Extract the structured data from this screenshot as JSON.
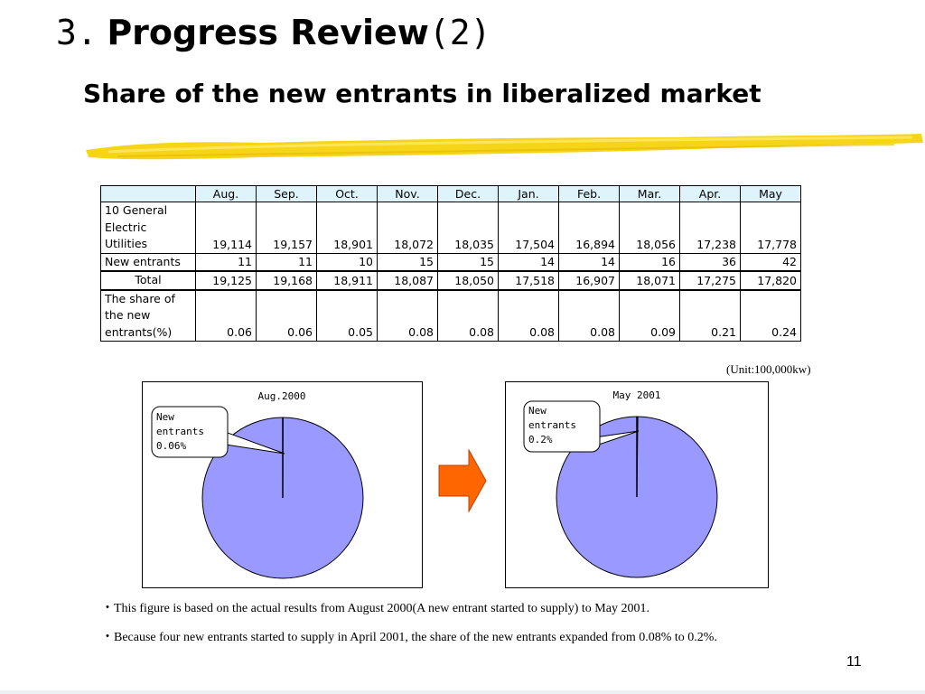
{
  "header": {
    "number": "3.",
    "title": "Progress Review",
    "suffix": "(2)",
    "subtitle": "Share of the new entrants in liberalized market"
  },
  "table": {
    "columns": [
      "Aug.",
      "Sep.",
      "Oct.",
      "Nov.",
      "Dec.",
      "Jan.",
      "Feb.",
      "Mar.",
      "Apr.",
      "May"
    ],
    "rows": [
      {
        "label": "10 General Electric Utilities",
        "values": [
          "19,114",
          "19,157",
          "18,901",
          "18,072",
          "18,035",
          "17,504",
          "16,894",
          "18,056",
          "17,238",
          "17,778"
        ]
      },
      {
        "label": "New entrants",
        "values": [
          "11",
          "11",
          "10",
          "15",
          "15",
          "14",
          "14",
          "16",
          "36",
          "42"
        ]
      },
      {
        "label": "Total",
        "values": [
          "19,125",
          "19,168",
          "18,911",
          "18,087",
          "18,050",
          "17,518",
          "16,907",
          "18,071",
          "17,275",
          "17,820"
        ]
      },
      {
        "label": "The share of the new entrants(%)",
        "values": [
          "0.06",
          "0.06",
          "0.05",
          "0.08",
          "0.08",
          "0.08",
          "0.08",
          "0.09",
          "0.21",
          "0.24"
        ]
      }
    ],
    "unit": "(Unit:100,000kw)"
  },
  "chart_data": [
    {
      "type": "pie",
      "title": "Aug.2000",
      "slices": [
        {
          "label": "New entrants 0.06%",
          "value": 0.06
        },
        {
          "label": "",
          "value": 99.94
        }
      ],
      "callout": [
        "New",
        "entrants",
        "0.06%"
      ],
      "colors": {
        "main": "#9999ff",
        "outline": "#000000"
      }
    },
    {
      "type": "pie",
      "title": "May 2001",
      "slices": [
        {
          "label": "New entrants 0.2%",
          "value": 0.2
        },
        {
          "label": "",
          "value": 99.8
        }
      ],
      "callout": [
        "New",
        "entrants",
        "0.2%"
      ],
      "colors": {
        "main": "#9999ff",
        "outline": "#000000"
      }
    }
  ],
  "arrow": {
    "color": "#ff6600",
    "icon": "right-arrow-icon"
  },
  "notes": [
    "・This figure is based on the actual results from August 2000(A new entrant started to supply) to May 2001.",
    "・Because four new entrants started to supply in April 2001, the share of the new entrants expanded from 0.08% to 0.2%."
  ],
  "page_number": "11",
  "colors": {
    "highlighter": "#f5d000",
    "table_header": "#dff3fb"
  }
}
